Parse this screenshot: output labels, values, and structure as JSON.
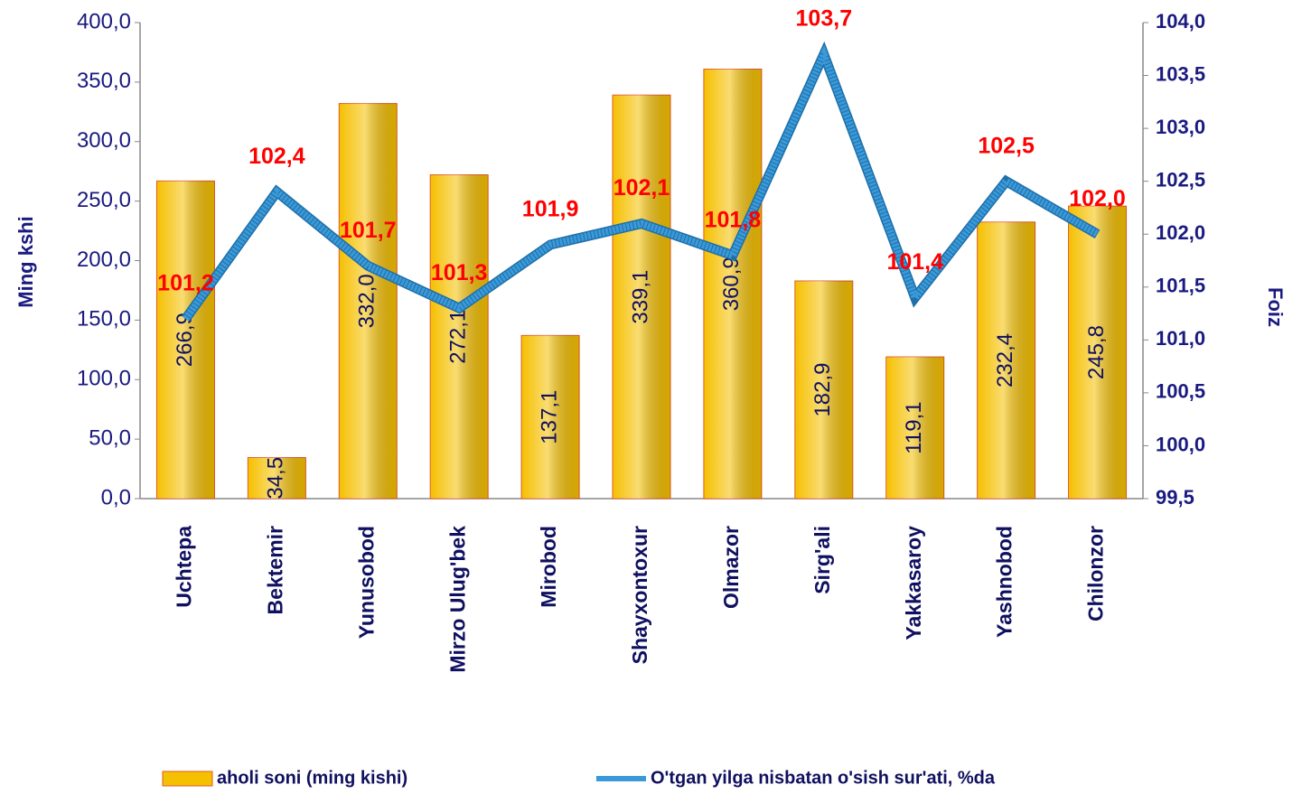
{
  "chart_data": {
    "type": "bar",
    "y_label": "Ming kshi",
    "y2_label": "Foiz",
    "categories": [
      "Uchtepa",
      "Bektemir",
      "Yunusobod",
      "Mirzo Ulug'bek",
      "Mirobod",
      "Shayxontoxur",
      "Olmazor",
      "Sirg'ali",
      "Yakkasaroy",
      "Yashnobod",
      "Chilonzor"
    ],
    "series": [
      {
        "name": "aholi soni (ming kishi)",
        "type": "bar",
        "color": "#f5c000",
        "values": [
          266.9,
          34.5,
          332.0,
          272.1,
          137.1,
          339.1,
          360.9,
          182.9,
          119.1,
          232.4,
          245.8
        ],
        "value_labels": [
          "266,9",
          "34,5",
          "332,0",
          "272,1",
          "137,1",
          "339,1",
          "360,9",
          "182,9",
          "119,1",
          "232,4",
          "245,8"
        ]
      },
      {
        "name": "O'tgan yilga nisbatan o'sish sur'ati, %da",
        "type": "line",
        "axis": "y2",
        "color": "#3a9ad9",
        "values": [
          101.2,
          102.4,
          101.7,
          101.3,
          101.9,
          102.1,
          101.8,
          103.7,
          101.4,
          102.5,
          102.0
        ],
        "value_labels": [
          "101,2",
          "102,4",
          "101,7",
          "101,3",
          "101,9",
          "102,1",
          "101,8",
          "103,7",
          "101,4",
          "102,5",
          "102,0"
        ]
      }
    ],
    "ylim": [
      0,
      400
    ],
    "yticks": [
      {
        "value": 0,
        "label": "0,0"
      },
      {
        "value": 50,
        "label": "50,0"
      },
      {
        "value": 100,
        "label": "100,0"
      },
      {
        "value": 150,
        "label": "150,0"
      },
      {
        "value": 200,
        "label": "200,0"
      },
      {
        "value": 250,
        "label": "250,0"
      },
      {
        "value": 300,
        "label": "300,0"
      },
      {
        "value": 350,
        "label": "350,0"
      },
      {
        "value": 400,
        "label": "400,0"
      }
    ],
    "y2lim": [
      99.5,
      104
    ],
    "y2ticks": [
      {
        "value": 99.5,
        "label": "99,5"
      },
      {
        "value": 100,
        "label": "100,0"
      },
      {
        "value": 100.5,
        "label": "100,5"
      },
      {
        "value": 101,
        "label": "101,0"
      },
      {
        "value": 101.5,
        "label": "101,5"
      },
      {
        "value": 102,
        "label": "102,0"
      },
      {
        "value": 102.5,
        "label": "102,5"
      },
      {
        "value": 103,
        "label": "103,0"
      },
      {
        "value": 103.5,
        "label": "103,5"
      },
      {
        "value": 104,
        "label": "104,0"
      }
    ]
  }
}
